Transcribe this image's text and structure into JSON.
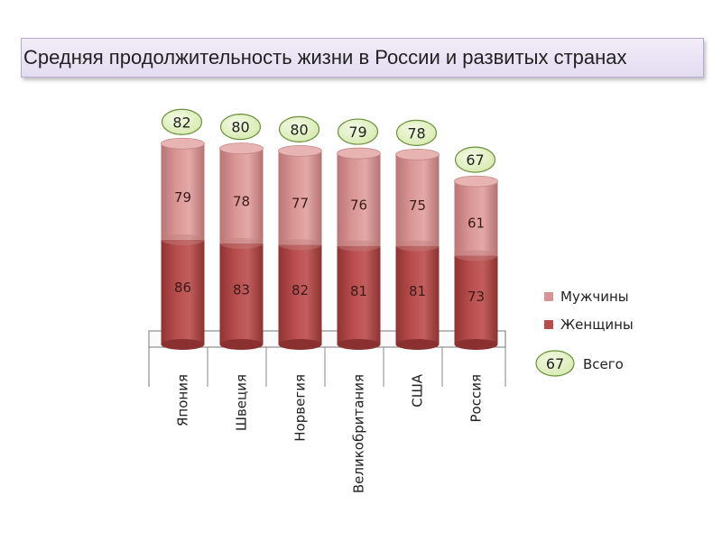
{
  "title": "Средняя продолжительность жизни в России и развитых странах",
  "colors": {
    "men": "#d99594",
    "women": "#b84c4c",
    "badge_fill": "#d7eab0",
    "badge_stroke": "#6a8f3a"
  },
  "chart_data": {
    "type": "bar",
    "stacked": true,
    "categories": [
      "Япония",
      "Швеция",
      "Норвегия",
      "Великобритания",
      "США",
      "Россия"
    ],
    "series": [
      {
        "name": "Женщины",
        "values": [
          86,
          83,
          82,
          81,
          81,
          73
        ]
      },
      {
        "name": "Мужчины",
        "values": [
          79,
          78,
          77,
          76,
          75,
          61
        ]
      }
    ],
    "totals": {
      "name": "Всего",
      "values": [
        82,
        80,
        80,
        79,
        78,
        67
      ]
    },
    "legend": {
      "placement": "right",
      "items": [
        "Мужчины",
        "Женщины"
      ],
      "total_label": "Всего",
      "total_example": "67"
    },
    "xlabel": "",
    "ylabel": "",
    "grid": false
  }
}
